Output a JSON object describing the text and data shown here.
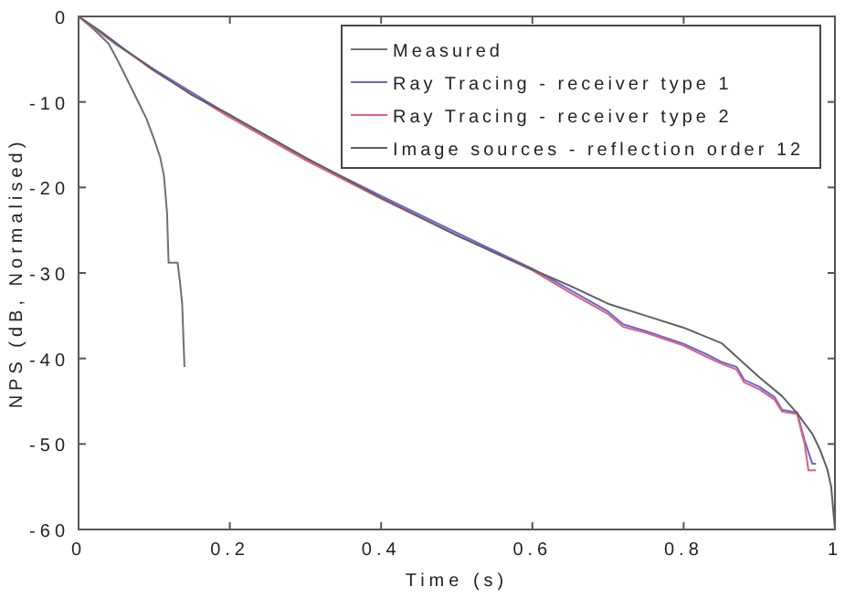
{
  "chart_data": {
    "type": "line",
    "xlabel": "Time (s)",
    "ylabel": "NPS (dB, Normalised)",
    "xlim": [
      0,
      1
    ],
    "ylim": [
      -60,
      0
    ],
    "xticks": [
      0,
      0.2,
      0.4,
      0.6,
      0.8,
      1
    ],
    "yticks": [
      -60,
      -50,
      -40,
      -30,
      -20,
      -10,
      0
    ],
    "legend": "top right",
    "grid": false,
    "series": [
      {
        "name": "Measured",
        "color": "#707070",
        "x": [
          0,
          0.02,
          0.04,
          0.052,
          0.065,
          0.08,
          0.09,
          0.1,
          0.108,
          0.113,
          0.117,
          0.119,
          0.131,
          0.134,
          0.137,
          0.14
        ],
        "values": [
          0,
          -1.5,
          -3.2,
          -5.2,
          -7.5,
          -10.2,
          -12,
          -14.4,
          -16.5,
          -18.7,
          -23,
          -28.8,
          -28.8,
          -31,
          -33.6,
          -41
        ]
      },
      {
        "name": "Ray Tracing - receiver type 1",
        "color": "#6666dd",
        "x": [
          0,
          0.05,
          0.1,
          0.2,
          0.3,
          0.4,
          0.5,
          0.6,
          0.65,
          0.7,
          0.72,
          0.75,
          0.8,
          0.83,
          0.85,
          0.87,
          0.88,
          0.9,
          0.92,
          0.93,
          0.95,
          0.955,
          0.96,
          0.97,
          0.975
        ],
        "values": [
          0,
          -3.3,
          -6.2,
          -11.6,
          -16.6,
          -21,
          -25.3,
          -29.5,
          -32,
          -34.5,
          -36,
          -36.8,
          -38.3,
          -39.5,
          -40.4,
          -41,
          -42.5,
          -43.3,
          -44.5,
          -46,
          -46.3,
          -48,
          -49.6,
          -52.3,
          -52.3
        ]
      },
      {
        "name": "Ray Tracing - receiver type 2",
        "color": "#e0607a",
        "x": [
          0,
          0.05,
          0.1,
          0.2,
          0.3,
          0.4,
          0.5,
          0.6,
          0.65,
          0.7,
          0.72,
          0.75,
          0.8,
          0.83,
          0.85,
          0.87,
          0.88,
          0.9,
          0.92,
          0.93,
          0.95,
          0.955,
          0.96,
          0.965,
          0.975
        ],
        "values": [
          0,
          -3.2,
          -6.4,
          -11.8,
          -16.8,
          -21.3,
          -25.6,
          -29.7,
          -32.3,
          -34.8,
          -36.3,
          -37,
          -38.5,
          -39.8,
          -40.6,
          -41.3,
          -42.8,
          -43.6,
          -44.8,
          -46.2,
          -46.5,
          -48.3,
          -50,
          -53.1,
          -53.1
        ]
      },
      {
        "name": "Image sources - reflection order 12",
        "color": "#606060",
        "x": [
          0,
          0.03,
          0.06,
          0.1,
          0.15,
          0.2,
          0.3,
          0.4,
          0.5,
          0.6,
          0.65,
          0.7,
          0.75,
          0.8,
          0.85,
          0.9,
          0.93,
          0.95,
          0.97,
          0.98,
          0.99,
          0.995,
          1
        ],
        "values": [
          0,
          -1.8,
          -3.8,
          -6.3,
          -9.2,
          -11.5,
          -16.5,
          -21.2,
          -25.6,
          -29.6,
          -31.5,
          -33.6,
          -35,
          -36.4,
          -38.2,
          -42.2,
          -44.4,
          -46.4,
          -48.8,
          -50.6,
          -53,
          -55,
          -60
        ]
      }
    ]
  }
}
